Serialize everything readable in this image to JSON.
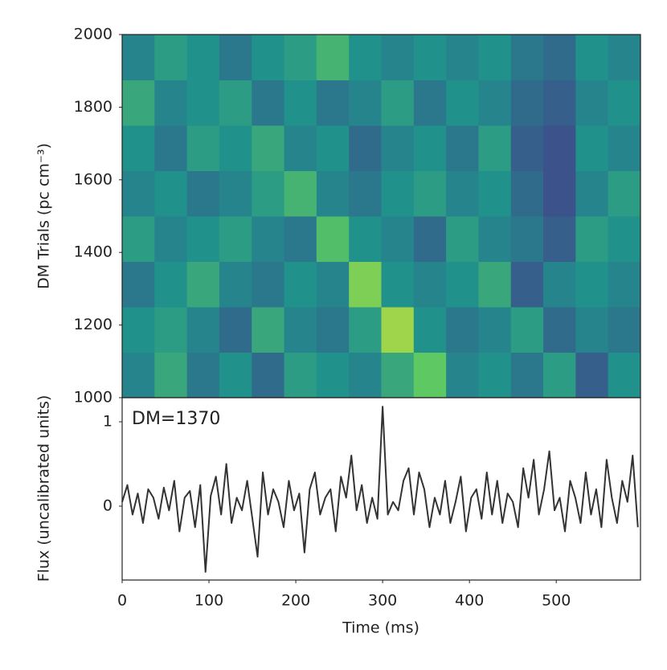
{
  "chart_data": [
    {
      "type": "heatmap",
      "ylabel": "DM Trials (pc cm⁻³)",
      "xlim": [
        0,
        597
      ],
      "ylim": [
        1000,
        2000
      ],
      "yticks": [
        1000,
        1200,
        1400,
        1600,
        1800,
        2000
      ],
      "colormap": "viridis",
      "z": [
        [
          0.45,
          0.6,
          0.4,
          0.5,
          0.35,
          0.55,
          0.5,
          0.45,
          0.6,
          0.75,
          0.45,
          0.5,
          0.4,
          0.55,
          0.3,
          0.5
        ],
        [
          0.5,
          0.55,
          0.45,
          0.35,
          0.6,
          0.45,
          0.4,
          0.55,
          0.85,
          0.5,
          0.4,
          0.45,
          0.55,
          0.35,
          0.45,
          0.4
        ],
        [
          0.4,
          0.5,
          0.6,
          0.45,
          0.4,
          0.5,
          0.45,
          0.8,
          0.5,
          0.45,
          0.5,
          0.6,
          0.3,
          0.45,
          0.5,
          0.45
        ],
        [
          0.55,
          0.45,
          0.5,
          0.55,
          0.45,
          0.4,
          0.7,
          0.5,
          0.45,
          0.35,
          0.55,
          0.45,
          0.4,
          0.3,
          0.55,
          0.5
        ],
        [
          0.45,
          0.5,
          0.4,
          0.45,
          0.55,
          0.65,
          0.45,
          0.4,
          0.5,
          0.55,
          0.45,
          0.5,
          0.35,
          0.25,
          0.45,
          0.55
        ],
        [
          0.5,
          0.4,
          0.55,
          0.5,
          0.6,
          0.45,
          0.5,
          0.35,
          0.45,
          0.5,
          0.4,
          0.55,
          0.3,
          0.25,
          0.5,
          0.45
        ],
        [
          0.6,
          0.45,
          0.5,
          0.55,
          0.4,
          0.5,
          0.4,
          0.45,
          0.55,
          0.4,
          0.5,
          0.45,
          0.35,
          0.3,
          0.45,
          0.5
        ],
        [
          0.45,
          0.55,
          0.5,
          0.4,
          0.5,
          0.55,
          0.65,
          0.5,
          0.45,
          0.5,
          0.45,
          0.5,
          0.4,
          0.35,
          0.5,
          0.45
        ]
      ]
    },
    {
      "type": "line",
      "xlabel": "Time (ms)",
      "ylabel": "Flux (uncalibrated units)",
      "annotation": "DM=1370",
      "color": "#333333",
      "xlim": [
        0,
        597
      ],
      "xticks": [
        0,
        100,
        200,
        300,
        400,
        500
      ],
      "ylim": [
        -0.876,
        1.286
      ],
      "yticks": [
        0,
        1
      ],
      "x": [
        0,
        6,
        12,
        18,
        24,
        30,
        36,
        42,
        48,
        54,
        60,
        66,
        72,
        78,
        84,
        90,
        96,
        102,
        108,
        114,
        120,
        126,
        132,
        138,
        144,
        150,
        156,
        162,
        168,
        174,
        180,
        186,
        192,
        198,
        204,
        210,
        216,
        222,
        228,
        234,
        240,
        246,
        252,
        258,
        264,
        270,
        276,
        282,
        288,
        294,
        300,
        306,
        312,
        318,
        324,
        330,
        336,
        342,
        348,
        354,
        360,
        366,
        372,
        378,
        384,
        390,
        396,
        402,
        408,
        414,
        420,
        426,
        432,
        438,
        444,
        450,
        456,
        462,
        468,
        474,
        480,
        486,
        492,
        498,
        504,
        510,
        516,
        522,
        528,
        534,
        540,
        546,
        552,
        558,
        564,
        570,
        576,
        582,
        588,
        594
      ],
      "values": [
        0.05,
        0.25,
        -0.1,
        0.15,
        -0.2,
        0.2,
        0.1,
        -0.15,
        0.22,
        -0.05,
        0.3,
        -0.3,
        0.1,
        0.18,
        -0.25,
        0.25,
        -0.78,
        0.12,
        0.35,
        -0.1,
        0.5,
        -0.2,
        0.1,
        -0.05,
        0.3,
        -0.15,
        -0.6,
        0.4,
        -0.1,
        0.2,
        0.05,
        -0.25,
        0.3,
        -0.05,
        0.15,
        -0.55,
        0.2,
        0.4,
        -0.1,
        0.1,
        0.2,
        -0.3,
        0.35,
        0.1,
        0.6,
        -0.05,
        0.25,
        -0.2,
        0.1,
        -0.15,
        1.18,
        -0.1,
        0.05,
        -0.05,
        0.3,
        0.45,
        -0.1,
        0.4,
        0.2,
        -0.25,
        0.1,
        -0.1,
        0.3,
        -0.2,
        0.05,
        0.35,
        -0.3,
        0.1,
        0.2,
        -0.15,
        0.4,
        -0.1,
        0.3,
        -0.2,
        0.15,
        0.05,
        -0.25,
        0.45,
        0.1,
        0.55,
        -0.1,
        0.2,
        0.65,
        -0.05,
        0.1,
        -0.3,
        0.3,
        0.1,
        -0.2,
        0.4,
        -0.1,
        0.2,
        -0.25,
        0.55,
        0.1,
        -0.2,
        0.3,
        0.05,
        0.6,
        -0.25
      ]
    }
  ]
}
